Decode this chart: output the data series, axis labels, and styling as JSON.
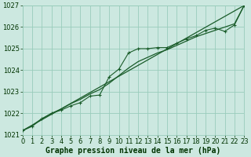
{
  "bg_color": "#cce8e0",
  "grid_color": "#99ccbb",
  "line_color_main": "#1a5c2a",
  "line_color_smooth": "#1a5c2a",
  "line_color_trend": "#1a5c2a",
  "marker_color": "#1a5c2a",
  "xlabel": "Graphe pression niveau de la mer (hPa)",
  "xlabel_color": "#003300",
  "ylabel_color": "#003300",
  "xlim": [
    0,
    23
  ],
  "ylim": [
    1021.0,
    1027.0
  ],
  "yticks": [
    1021,
    1022,
    1023,
    1024,
    1025,
    1026,
    1027
  ],
  "xticks": [
    0,
    1,
    2,
    3,
    4,
    5,
    6,
    7,
    8,
    9,
    10,
    11,
    12,
    13,
    14,
    15,
    16,
    17,
    18,
    19,
    20,
    21,
    22,
    23
  ],
  "hours": [
    0,
    1,
    2,
    3,
    4,
    5,
    6,
    7,
    8,
    9,
    10,
    11,
    12,
    13,
    14,
    15,
    16,
    17,
    18,
    19,
    20,
    21,
    22,
    23
  ],
  "pressure": [
    1021.2,
    1021.4,
    1021.75,
    1022.0,
    1022.15,
    1022.35,
    1022.5,
    1022.8,
    1022.85,
    1023.7,
    1024.05,
    1024.8,
    1025.0,
    1025.0,
    1025.05,
    1025.05,
    1025.25,
    1025.45,
    1025.6,
    1025.85,
    1025.95,
    1025.8,
    1026.1,
    1027.0
  ],
  "pressure_smooth": [
    1021.2,
    1021.45,
    1021.75,
    1022.0,
    1022.2,
    1022.45,
    1022.65,
    1022.9,
    1023.1,
    1023.4,
    1023.75,
    1024.1,
    1024.4,
    1024.6,
    1024.8,
    1024.95,
    1025.15,
    1025.35,
    1025.55,
    1025.7,
    1025.85,
    1026.0,
    1026.15,
    1027.0
  ],
  "tick_fontsize": 6,
  "label_fontsize": 7
}
